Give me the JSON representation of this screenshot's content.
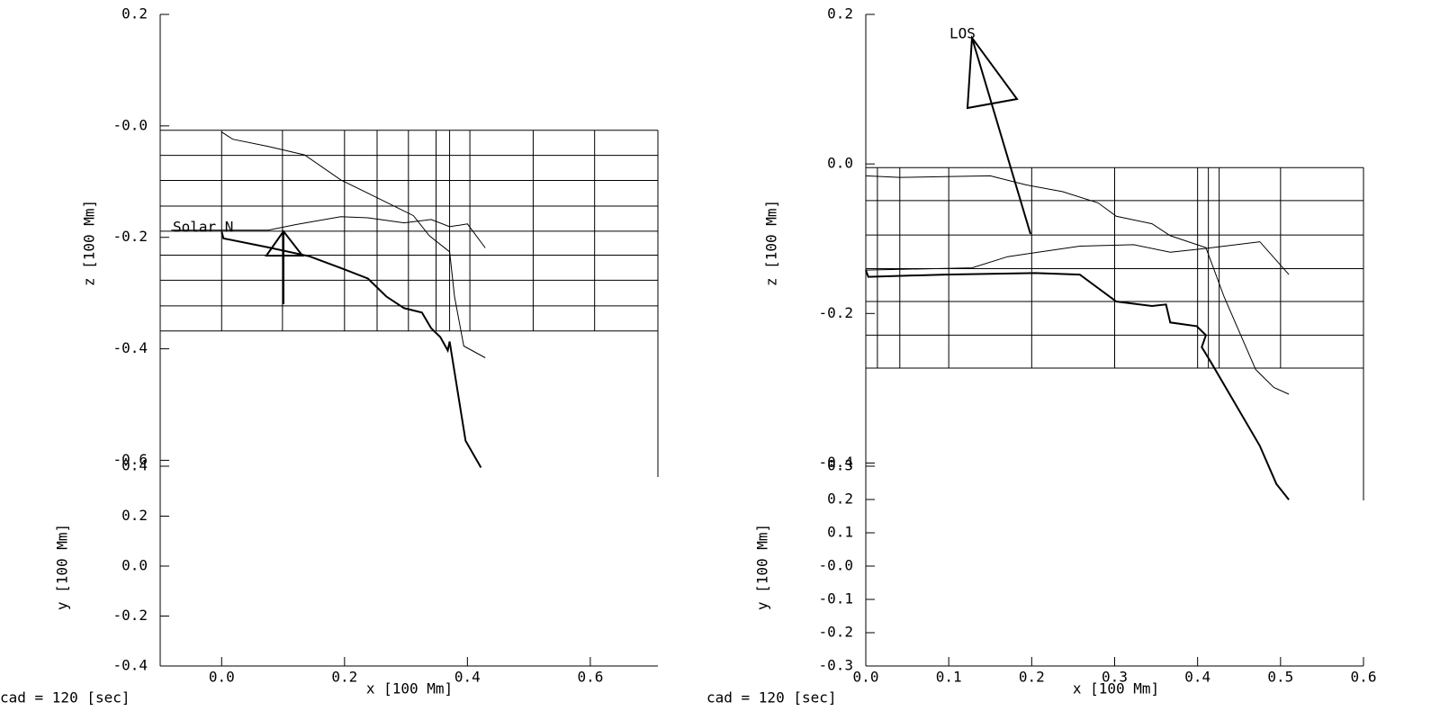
{
  "chart_data": [
    {
      "type": "line",
      "xlim": [
        -0.1,
        0.71
      ],
      "xticks": [
        {
          "value": 0,
          "label": "0.0"
        },
        0.2,
        0.4,
        0.6
      ],
      "xlabel": "x [100 Mm]",
      "zlim": [
        -0.63,
        0.2
      ],
      "zticks": [
        0.2,
        {
          "value": 0,
          "label": "-0.0"
        },
        -0.2,
        -0.4,
        -0.6
      ],
      "zlabel": "z [100 Mm]",
      "ylim": [
        -0.4,
        0.4
      ],
      "yticks": [
        0.4,
        0.2,
        {
          "value": 0,
          "label": "0.0"
        },
        -0.2,
        -0.4
      ],
      "ylabel": "y [100 Mm]",
      "grid_x": [
        0,
        0.099,
        0.2,
        0.253,
        0.304,
        0.349,
        0.371,
        0.404,
        0.507,
        0.607,
        0.71
      ],
      "grid_z": [
        -0.008,
        -0.053,
        -0.098,
        -0.144,
        -0.189,
        -0.232,
        -0.277,
        -0.323,
        -0.368
      ],
      "annotation": "Solar N",
      "footer": "cad =  120 [sec]",
      "series": [
        {
          "line_width": 1,
          "x": [
            0,
            0.018,
            0.076,
            0.135,
            0.194,
            0.253,
            0.312,
            0.338,
            0.371,
            0.379,
            0.394,
            0.429
          ],
          "z": [
            -0.011,
            -0.024,
            -0.037,
            -0.052,
            -0.097,
            -0.129,
            -0.161,
            -0.197,
            -0.226,
            -0.306,
            -0.395,
            -0.416
          ]
        },
        {
          "line_width": 1,
          "x": [
            -0.082,
            0.076,
            0.121,
            0.194,
            0.238,
            0.297,
            0.341,
            0.371,
            0.4,
            0.429
          ],
          "z": [
            -0.187,
            -0.187,
            -0.177,
            -0.163,
            -0.165,
            -0.174,
            -0.168,
            -0.181,
            -0.176,
            -0.219
          ]
        },
        {
          "line_width": 2,
          "x": [
            0,
            0.003,
            0.076,
            0.143,
            0.194,
            0.238,
            0.268,
            0.297,
            0.326,
            0.341,
            0.356,
            0.368,
            0.371,
            0.397,
            0.422
          ],
          "z": [
            -0.19,
            -0.202,
            -0.218,
            -0.234,
            -0.255,
            -0.274,
            -0.306,
            -0.327,
            -0.335,
            -0.363,
            -0.379,
            -0.403,
            -0.387,
            -0.565,
            -0.613
          ]
        }
      ]
    },
    {
      "type": "line",
      "xlim": [
        0,
        0.6
      ],
      "xticks": [
        {
          "value": 0,
          "label": "0.0"
        },
        0.1,
        0.2,
        0.3,
        0.4,
        0.5,
        0.6
      ],
      "xlabel": "x [100 Mm]",
      "zlim": [
        -0.45,
        0.2
      ],
      "zticks": [
        0.2,
        {
          "value": 0,
          "label": "0.0"
        },
        -0.2,
        -0.4
      ],
      "zlabel": "z [100 Mm]",
      "ylim": [
        -0.3,
        0.3
      ],
      "yticks": [
        0.3,
        0.2,
        0.1,
        {
          "value": 0,
          "label": "-0.0"
        },
        -0.1,
        -0.2,
        -0.3
      ],
      "ylabel": "y [100 Mm]",
      "grid_x": [
        0,
        0.014,
        0.041,
        0.1,
        0.2,
        0.3,
        0.4,
        0.413,
        0.426,
        0.5,
        0.6
      ],
      "grid_z": [
        -0.005,
        -0.049,
        -0.095,
        -0.14,
        -0.184,
        -0.229,
        -0.273
      ],
      "annotation": "LOS",
      "footer": "cad =  120 [sec]",
      "series": [
        {
          "line_width": 1,
          "x": [
            0,
            0.041,
            0.095,
            0.15,
            0.193,
            0.237,
            0.28,
            0.302,
            0.345,
            0.367,
            0.41,
            0.432,
            0.47,
            0.492,
            0.51
          ],
          "z": [
            -0.016,
            -0.018,
            -0.017,
            -0.016,
            -0.028,
            -0.037,
            -0.052,
            -0.07,
            -0.08,
            -0.096,
            -0.112,
            -0.178,
            -0.275,
            -0.299,
            -0.308
          ]
        },
        {
          "line_width": 1,
          "x": [
            0,
            0.128,
            0.171,
            0.258,
            0.323,
            0.367,
            0.41,
            0.475,
            0.51
          ],
          "z": [
            -0.142,
            -0.139,
            -0.124,
            -0.11,
            -0.108,
            -0.118,
            -0.113,
            -0.104,
            -0.148
          ]
        },
        {
          "line_width": 2,
          "x": [
            0,
            0.003,
            0.095,
            0.204,
            0.258,
            0.302,
            0.345,
            0.362,
            0.367,
            0.399,
            0.41,
            0.405,
            0.416,
            0.475,
            0.495,
            0.51
          ],
          "z": [
            -0.142,
            -0.151,
            -0.148,
            -0.146,
            -0.148,
            -0.184,
            -0.19,
            -0.188,
            -0.212,
            -0.217,
            -0.229,
            -0.245,
            -0.265,
            -0.377,
            -0.428,
            -0.449
          ]
        }
      ]
    }
  ]
}
